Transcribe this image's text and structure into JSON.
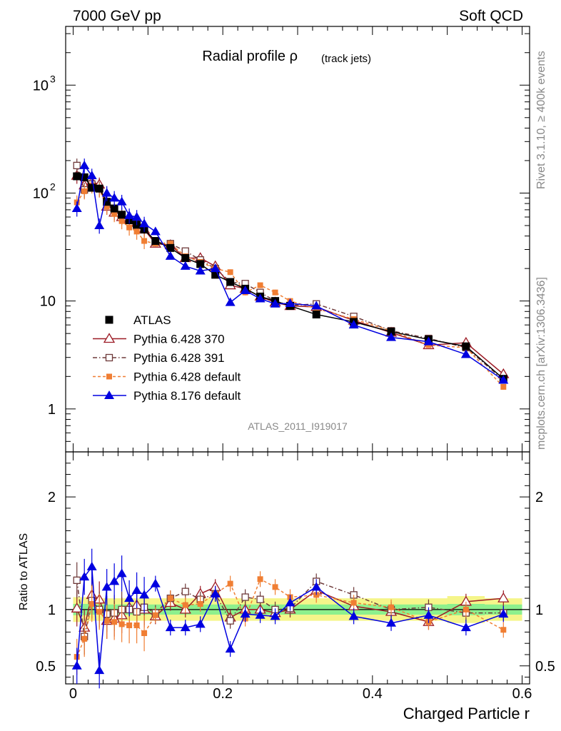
{
  "header": {
    "left": "7000 GeV pp",
    "right": "Soft QCD"
  },
  "side": {
    "rivet": "Rivet 3.1.10, ≥ 400k events",
    "mcplots": "mcplots.cern.ch [arXiv:1306.3436]"
  },
  "watermark": "ATLAS_2011_I919017",
  "chart_data": [
    {
      "type": "scatter",
      "title": "Radial profile ρ",
      "title_note": "(track jets)",
      "xlabel": "Charged Particle r",
      "ylabel": "",
      "xlim": [
        -0.01,
        0.61
      ],
      "ylim": [
        0.4,
        3500
      ],
      "log_y": true,
      "y_ticks": [
        {
          "v": 1,
          "label": "1"
        },
        {
          "v": 10,
          "label": "10"
        },
        {
          "v": 100,
          "label": "10",
          "exp": "2"
        },
        {
          "v": 1000,
          "label": "10",
          "exp": "3"
        }
      ],
      "legend_position": "bottom-left",
      "series": [
        {
          "name": "ATLAS",
          "color": "#000000",
          "marker": "square-filled",
          "dash": "",
          "x": [
            0.005,
            0.015,
            0.025,
            0.035,
            0.045,
            0.055,
            0.065,
            0.075,
            0.085,
            0.095,
            0.11,
            0.13,
            0.15,
            0.17,
            0.19,
            0.21,
            0.23,
            0.25,
            0.27,
            0.29,
            0.325,
            0.375,
            0.425,
            0.475,
            0.525,
            0.575
          ],
          "y": [
            143,
            140,
            112,
            110,
            83,
            72,
            63,
            56,
            51,
            46,
            36,
            31,
            25,
            22,
            17.5,
            15,
            13,
            11,
            10,
            9,
            7.5,
            6.4,
            5.2,
            4.4,
            3.8,
            1.9
          ]
        },
        {
          "name": "Pythia 6.428 370",
          "color": "#9c1a24",
          "marker": "triangle-open",
          "dash": "",
          "x": [
            0.005,
            0.015,
            0.025,
            0.035,
            0.045,
            0.055,
            0.065,
            0.075,
            0.085,
            0.095,
            0.11,
            0.13,
            0.15,
            0.17,
            0.19,
            0.21,
            0.23,
            0.25,
            0.27,
            0.29,
            0.325,
            0.375,
            0.425,
            0.475,
            0.525,
            0.575
          ],
          "y": [
            145,
            118,
            127,
            120,
            75,
            66,
            60,
            57,
            53,
            46,
            34,
            33,
            25,
            25,
            21,
            14,
            13,
            11,
            9.7,
            9,
            8.8,
            6.6,
            5.1,
            3.9,
            4.1,
            2.1
          ]
        },
        {
          "name": "Pythia 6.428 391",
          "color": "#6e3a3a",
          "marker": "square-open",
          "dash": "6,3,1.5,3",
          "x": [
            0.005,
            0.015,
            0.025,
            0.035,
            0.045,
            0.055,
            0.065,
            0.075,
            0.085,
            0.095,
            0.11,
            0.13,
            0.15,
            0.17,
            0.19,
            0.21,
            0.23,
            0.25,
            0.27,
            0.29,
            0.325,
            0.375,
            0.425,
            0.475,
            0.525,
            0.575
          ],
          "y": [
            180,
            107,
            121,
            110,
            80,
            70,
            63,
            56,
            50,
            47,
            35,
            34,
            29,
            24,
            20,
            15,
            14.5,
            12,
            10,
            9.1,
            9.4,
            7.2,
            5.3,
            4.5,
            3.7,
            1.85
          ]
        },
        {
          "name": "Pythia 6.428 default",
          "color": "#f07e33",
          "marker": "square-filled-small",
          "dash": "4,3",
          "x": [
            0.005,
            0.015,
            0.025,
            0.035,
            0.045,
            0.055,
            0.065,
            0.075,
            0.085,
            0.095,
            0.11,
            0.13,
            0.15,
            0.17,
            0.19,
            0.21,
            0.23,
            0.25,
            0.27,
            0.29,
            0.325,
            0.375,
            0.425,
            0.475,
            0.525,
            0.575
          ],
          "y": [
            82,
            104,
            118,
            108,
            75,
            64,
            55,
            48,
            44,
            36,
            34,
            34,
            26,
            23,
            20,
            18.5,
            12,
            14,
            12,
            10,
            8.5,
            6.8,
            5.3,
            3.9,
            3.7,
            1.6
          ]
        },
        {
          "name": "Pythia 8.176 default",
          "color": "#0000e0",
          "marker": "triangle-filled",
          "dash": "",
          "x": [
            0.005,
            0.015,
            0.025,
            0.035,
            0.045,
            0.055,
            0.065,
            0.075,
            0.085,
            0.095,
            0.11,
            0.13,
            0.15,
            0.17,
            0.19,
            0.21,
            0.23,
            0.25,
            0.27,
            0.29,
            0.325,
            0.375,
            0.425,
            0.475,
            0.525,
            0.575
          ],
          "y": [
            72,
            180,
            145,
            50,
            100,
            90,
            83,
            62,
            60,
            52,
            44,
            26,
            21,
            19,
            20,
            9.7,
            12.5,
            10.5,
            9.4,
            9.5,
            9,
            6,
            4.6,
            4.2,
            3.2,
            1.85
          ]
        }
      ]
    },
    {
      "type": "scatter",
      "title": "",
      "xlabel": "Charged Particle r",
      "ylabel": "Ratio to ATLAS",
      "xlim": [
        -0.01,
        0.61
      ],
      "ylim": [
        0.34,
        2.4
      ],
      "y_ticks": [
        {
          "v": 0.5,
          "label": "0.5"
        },
        {
          "v": 1,
          "label": "1"
        },
        {
          "v": 2,
          "label": "2"
        }
      ],
      "x_ticks": [
        {
          "v": 0,
          "label": "0"
        },
        {
          "v": 0.2,
          "label": "0.2"
        },
        {
          "v": 0.4,
          "label": "0.4"
        },
        {
          "v": 0.6,
          "label": "0.6"
        }
      ],
      "bands": [
        {
          "color": "#f5f58a",
          "x": [
            0,
            0.01,
            0.02,
            0.03,
            0.04,
            0.05,
            0.06,
            0.07,
            0.08,
            0.09,
            0.1,
            0.12,
            0.14,
            0.16,
            0.18,
            0.2,
            0.22,
            0.24,
            0.26,
            0.28,
            0.3,
            0.35,
            0.4,
            0.45,
            0.5,
            0.55,
            0.6
          ],
          "half": [
            0.11,
            0.11,
            0.1,
            0.1,
            0.1,
            0.1,
            0.1,
            0.1,
            0.1,
            0.1,
            0.1,
            0.1,
            0.1,
            0.1,
            0.1,
            0.1,
            0.1,
            0.1,
            0.1,
            0.1,
            0.1,
            0.1,
            0.1,
            0.1,
            0.12,
            0.1,
            0.1
          ]
        },
        {
          "color": "#8df08d",
          "x": [
            0,
            0.01,
            0.02,
            0.03,
            0.04,
            0.05,
            0.06,
            0.07,
            0.08,
            0.09,
            0.1,
            0.12,
            0.14,
            0.16,
            0.18,
            0.2,
            0.22,
            0.24,
            0.26,
            0.28,
            0.3,
            0.35,
            0.4,
            0.45,
            0.5,
            0.55,
            0.6
          ],
          "half": [
            0.05,
            0.05,
            0.045,
            0.045,
            0.045,
            0.045,
            0.045,
            0.045,
            0.045,
            0.045,
            0.045,
            0.045,
            0.045,
            0.045,
            0.045,
            0.045,
            0.045,
            0.045,
            0.045,
            0.045,
            0.045,
            0.045,
            0.045,
            0.045,
            0.05,
            0.045,
            0.045
          ]
        }
      ],
      "series": [
        {
          "name": "Pythia 6.428 370",
          "color": "#9c1a24",
          "marker": "triangle-open",
          "dash": "",
          "x": [
            0.005,
            0.015,
            0.025,
            0.035,
            0.045,
            0.055,
            0.065,
            0.075,
            0.085,
            0.095,
            0.11,
            0.13,
            0.15,
            0.17,
            0.19,
            0.21,
            0.23,
            0.25,
            0.27,
            0.29,
            0.325,
            0.375,
            0.425,
            0.475,
            0.525,
            0.575
          ],
          "y": [
            1.01,
            0.84,
            1.13,
            1.09,
            0.9,
            0.92,
            0.95,
            1.02,
            1.04,
            1.0,
            0.94,
            1.06,
            1.0,
            1.14,
            1.2,
            0.93,
            1.0,
            1.0,
            0.97,
            1.0,
            1.17,
            1.03,
            0.98,
            0.89,
            1.07,
            1.1
          ]
        },
        {
          "name": "Pythia 6.428 391",
          "color": "#6e3a3a",
          "marker": "square-open",
          "dash": "6,3,1.5,3",
          "x": [
            0.005,
            0.015,
            0.025,
            0.035,
            0.045,
            0.055,
            0.065,
            0.075,
            0.085,
            0.095,
            0.11,
            0.13,
            0.15,
            0.17,
            0.19,
            0.21,
            0.23,
            0.25,
            0.27,
            0.29,
            0.325,
            0.375,
            0.425,
            0.475,
            0.525,
            0.575
          ],
          "y": [
            1.26,
            0.76,
            1.08,
            1.0,
            0.96,
            0.97,
            1.0,
            1.0,
            0.98,
            1.02,
            0.97,
            1.1,
            1.16,
            1.09,
            1.14,
            0.9,
            1.11,
            1.09,
            1.0,
            1.01,
            1.25,
            1.13,
            1.0,
            1.02,
            0.97,
            0.97
          ]
        },
        {
          "name": "Pythia 6.428 default",
          "color": "#f07e33",
          "marker": "square-filled-small",
          "dash": "4,3",
          "x": [
            0.005,
            0.015,
            0.025,
            0.035,
            0.045,
            0.055,
            0.065,
            0.075,
            0.085,
            0.095,
            0.11,
            0.13,
            0.15,
            0.17,
            0.19,
            0.21,
            0.23,
            0.25,
            0.27,
            0.29,
            0.325,
            0.375,
            0.425,
            0.475,
            0.525,
            0.575
          ],
          "y": [
            0.58,
            0.74,
            1.05,
            0.98,
            0.9,
            0.89,
            0.87,
            0.86,
            0.86,
            0.79,
            0.95,
            1.1,
            1.04,
            1.05,
            1.14,
            1.23,
            0.92,
            1.27,
            1.2,
            1.11,
            1.13,
            1.06,
            1.02,
            0.89,
            1.0,
            0.82
          ]
        },
        {
          "name": "Pythia 8.176 default",
          "color": "#0000e0",
          "marker": "triangle-filled",
          "dash": "",
          "x": [
            0.005,
            0.015,
            0.025,
            0.035,
            0.045,
            0.055,
            0.065,
            0.075,
            0.085,
            0.095,
            0.11,
            0.13,
            0.15,
            0.17,
            0.19,
            0.21,
            0.23,
            0.25,
            0.27,
            0.29,
            0.325,
            0.375,
            0.425,
            0.475,
            0.525,
            0.575
          ],
          "y": [
            0.5,
            1.29,
            1.38,
            0.46,
            1.2,
            1.25,
            1.32,
            1.1,
            1.17,
            1.13,
            1.23,
            0.84,
            0.84,
            0.87,
            1.14,
            0.65,
            0.96,
            0.95,
            0.94,
            1.06,
            1.2,
            0.94,
            0.88,
            0.95,
            0.84,
            0.96
          ]
        }
      ]
    }
  ]
}
